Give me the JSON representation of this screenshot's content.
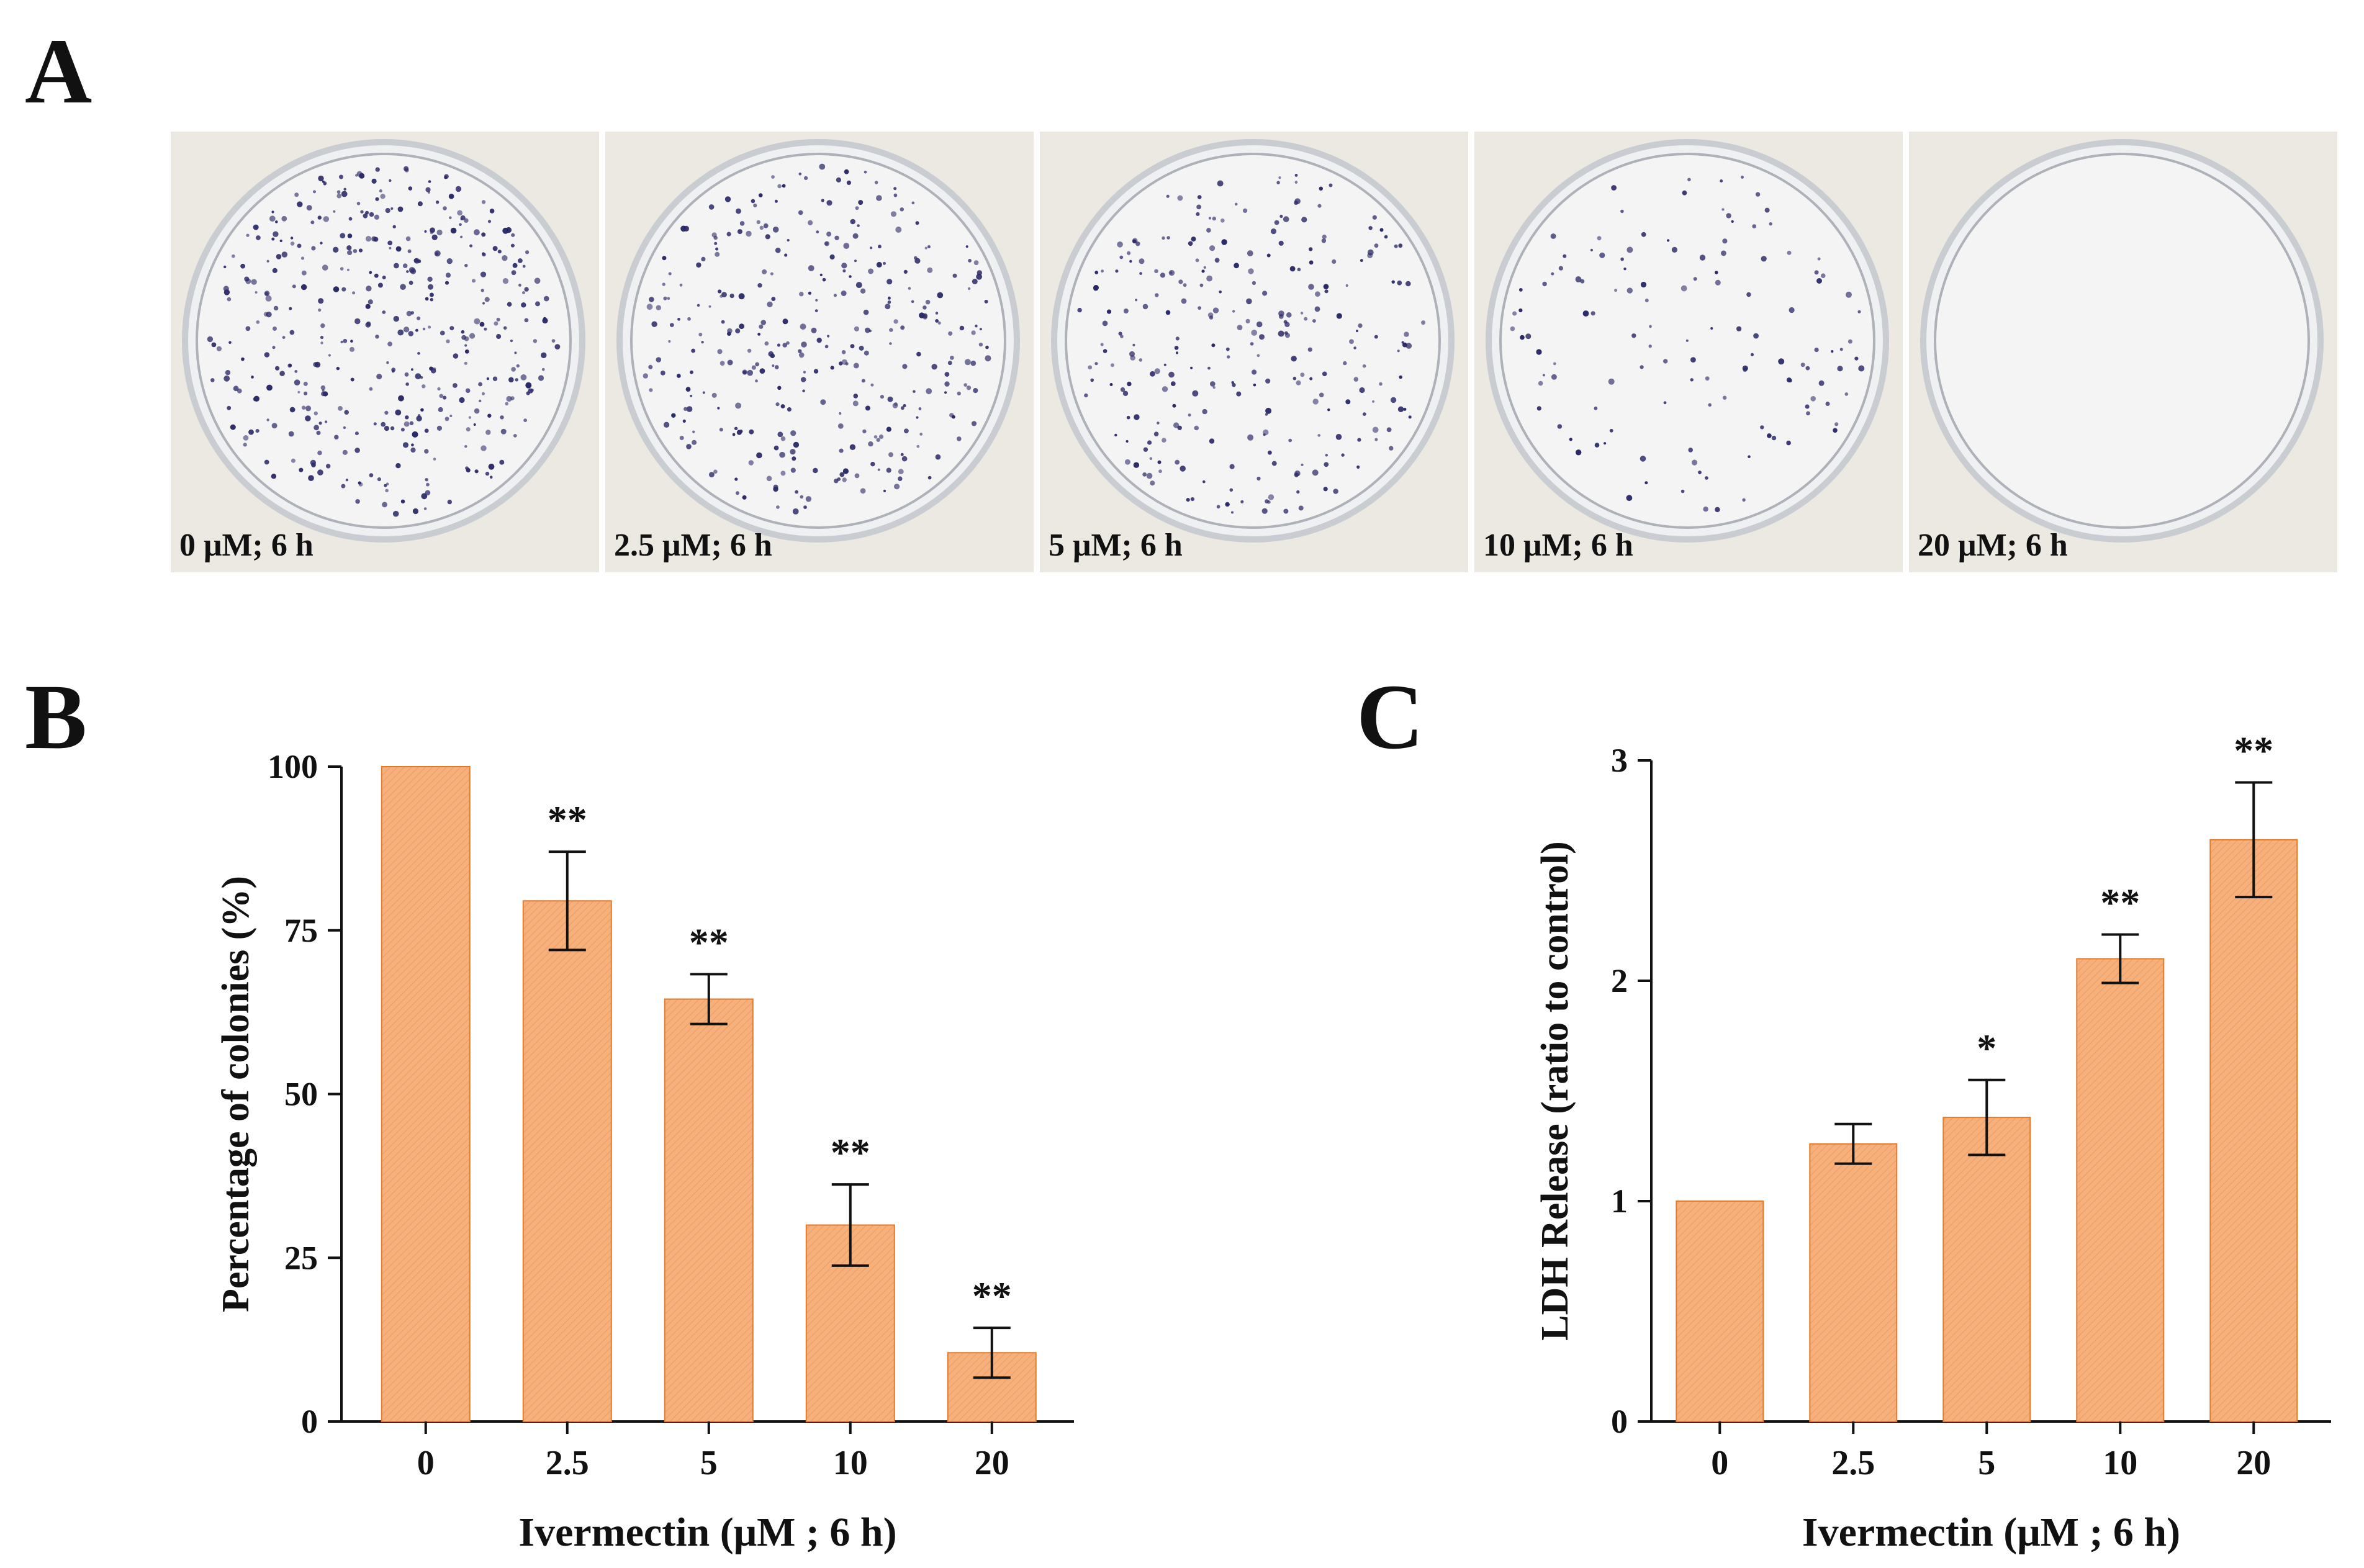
{
  "panels": {
    "a": "A",
    "b": "B",
    "c": "C"
  },
  "dishes": [
    {
      "label": "0 μM; 6 h",
      "density": 1.0
    },
    {
      "label": "2.5 μM; 6 h",
      "density": 0.79
    },
    {
      "label": "5 μM; 6 h",
      "density": 0.64
    },
    {
      "label": "10 μM; 6 h",
      "density": 0.3
    },
    {
      "label": "20 μM; 6 h",
      "density": 0.0
    }
  ],
  "colors": {
    "bar_fill": "#f6b07c",
    "bar_stroke": "#e07c2c",
    "dot": "#2c2a66"
  },
  "chart_data": [
    {
      "type": "bar",
      "panel": "B",
      "categories": [
        "0",
        "2.5",
        "5",
        "10",
        "20"
      ],
      "values": [
        100,
        79.5,
        64.5,
        30,
        10.5
      ],
      "errors": [
        0,
        7.5,
        3.8,
        6.2,
        3.8
      ],
      "significance": [
        "",
        "**",
        "**",
        "**",
        "**"
      ],
      "xlabel": "Ivermectin (μM ; 6 h)",
      "ylabel": "Percentage of colonies  (%)",
      "ylim": [
        0,
        100
      ],
      "yticks": [
        "0",
        "25",
        "50",
        "75",
        "100"
      ]
    },
    {
      "type": "bar",
      "panel": "C",
      "categories": [
        "0",
        "2.5",
        "5",
        "10",
        "20"
      ],
      "values": [
        1.0,
        1.26,
        1.38,
        2.1,
        2.64
      ],
      "errors": [
        0,
        0.09,
        0.17,
        0.11,
        0.26
      ],
      "significance": [
        "",
        "",
        "*",
        "**",
        "**"
      ],
      "xlabel": "Ivermectin (μM ; 6 h)",
      "ylabel": "LDH Release (ratio to control)",
      "ylim": [
        0,
        3
      ],
      "yticks": [
        "0",
        "1",
        "2",
        "3"
      ]
    }
  ]
}
